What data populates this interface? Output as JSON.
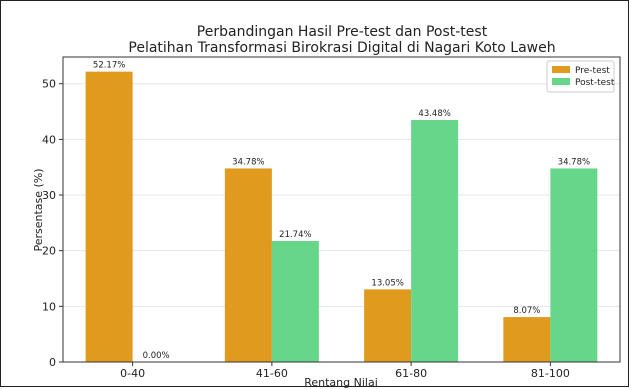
{
  "chart_data": {
    "type": "bar",
    "title": "Perbandingan Hasil Pre-test dan Post-test",
    "subtitle": "Pelatihan Transformasi Birokrasi Digital di Nagari Koto Laweh",
    "xlabel": "Rentang Nilai",
    "ylabel": "Persentase (%)",
    "categories": [
      "0-40",
      "41-60",
      "61-80",
      "81-100"
    ],
    "series": [
      {
        "name": "Pre-test",
        "color": "#E09B1F",
        "values": [
          52.17,
          34.78,
          13.05,
          8.07
        ],
        "labels": [
          "52.17%",
          "34.78%",
          "13.05%",
          "8.07%"
        ]
      },
      {
        "name": "Post-test",
        "color": "#66D68A",
        "values": [
          0.0,
          21.74,
          43.48,
          34.78
        ],
        "labels": [
          "0.00%",
          "21.74%",
          "43.48%",
          "34.78%"
        ]
      }
    ],
    "yticks": [
      0,
      10,
      20,
      30,
      40,
      50
    ],
    "ylim": [
      0,
      54.8
    ],
    "grid": true,
    "legend": "top-right"
  }
}
